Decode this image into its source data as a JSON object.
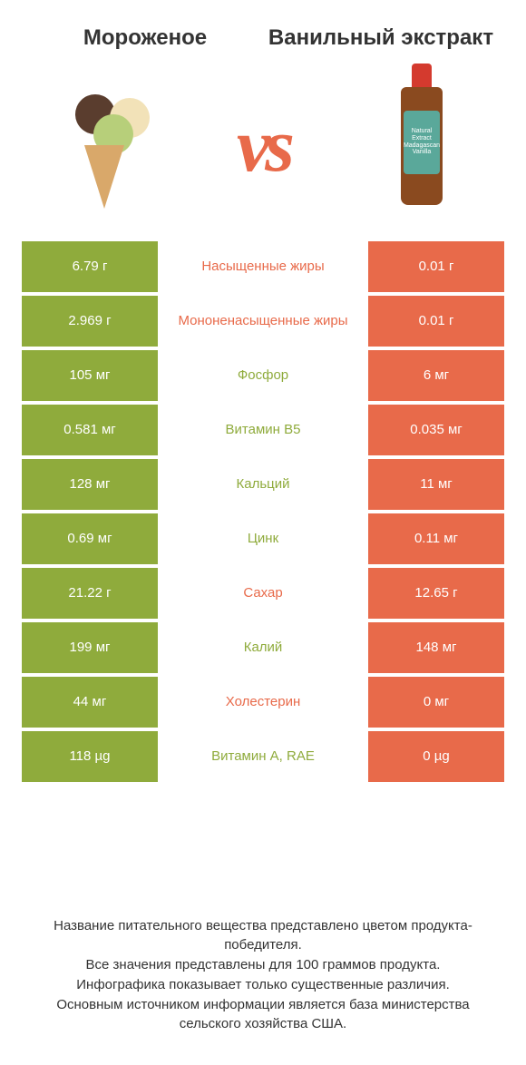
{
  "colors": {
    "left": "#8fab3c",
    "right": "#e86a4a",
    "mid_bg": "#ffffff",
    "text": "#333333",
    "cell_text": "#ffffff"
  },
  "header": {
    "left_title": "Мороженое",
    "right_title": "Ванильный экстракт",
    "vs": "vs"
  },
  "images": {
    "bottle_label_top": "Natural Extract",
    "bottle_label_mid": "Madagascan Vanilla"
  },
  "rows": [
    {
      "left": "6.79 г",
      "label": "Насыщенные жиры",
      "right": "0.01 г",
      "winner": "right"
    },
    {
      "left": "2.969 г",
      "label": "Мононенасыщенные жиры",
      "right": "0.01 г",
      "winner": "right"
    },
    {
      "left": "105 мг",
      "label": "Фосфор",
      "right": "6 мг",
      "winner": "left"
    },
    {
      "left": "0.581 мг",
      "label": "Витамин B5",
      "right": "0.035 мг",
      "winner": "left"
    },
    {
      "left": "128 мг",
      "label": "Кальций",
      "right": "11 мг",
      "winner": "left"
    },
    {
      "left": "0.69 мг",
      "label": "Цинк",
      "right": "0.11 мг",
      "winner": "left"
    },
    {
      "left": "21.22 г",
      "label": "Сахар",
      "right": "12.65 г",
      "winner": "right"
    },
    {
      "left": "199 мг",
      "label": "Калий",
      "right": "148 мг",
      "winner": "left"
    },
    {
      "left": "44 мг",
      "label": "Холестерин",
      "right": "0 мг",
      "winner": "right"
    },
    {
      "left": "118 µg",
      "label": "Витамин A, RAE",
      "right": "0 µg",
      "winner": "left"
    }
  ],
  "footer": {
    "line1": "Название питательного вещества представлено цветом продукта-победителя.",
    "line2": "Все значения представлены для 100 граммов продукта.",
    "line3": "Инфографика показывает только существенные различия.",
    "line4": "Основным источником информации является база министерства сельского хозяйства США."
  }
}
